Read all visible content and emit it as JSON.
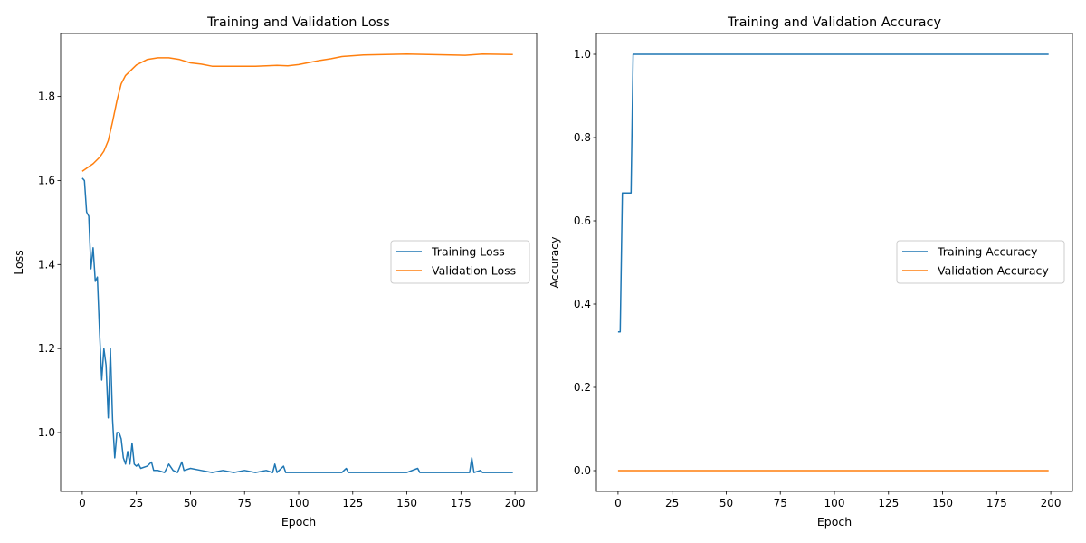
{
  "chart_data": [
    {
      "type": "line",
      "title": "Training and Validation Loss",
      "xlabel": "Epoch",
      "ylabel": "Loss",
      "xlim": [
        -10,
        210
      ],
      "ylim": [
        0.86,
        1.95
      ],
      "xticks": [
        0,
        25,
        50,
        75,
        100,
        125,
        150,
        175,
        200
      ],
      "yticks": [
        1.0,
        1.2,
        1.4,
        1.6,
        1.8
      ],
      "ytick_labels": [
        "1.0",
        "1.2",
        "1.4",
        "1.6",
        "1.8"
      ],
      "grid": false,
      "legend": "center-right",
      "series": [
        {
          "name": "Training Loss",
          "color": "#1f77b4",
          "x": [
            0,
            1,
            2,
            3,
            4,
            5,
            6,
            7,
            8,
            9,
            10,
            11,
            12,
            13,
            14,
            15,
            16,
            17,
            18,
            19,
            20,
            21,
            22,
            23,
            24,
            25,
            26,
            27,
            30,
            32,
            33,
            35,
            38,
            40,
            42,
            44,
            46,
            47,
            50,
            55,
            60,
            65,
            70,
            75,
            80,
            85,
            88,
            89,
            90,
            93,
            94,
            100,
            110,
            120,
            122,
            123,
            130,
            140,
            150,
            155,
            156,
            160,
            170,
            175,
            179,
            180,
            181,
            184,
            185,
            190,
            195,
            199
          ],
          "y": [
            1.606,
            1.6,
            1.525,
            1.515,
            1.39,
            1.44,
            1.36,
            1.37,
            1.24,
            1.125,
            1.2,
            1.16,
            1.035,
            1.2,
            1.03,
            0.94,
            1.0,
            1.0,
            0.985,
            0.94,
            0.925,
            0.955,
            0.925,
            0.975,
            0.925,
            0.92,
            0.925,
            0.915,
            0.92,
            0.93,
            0.91,
            0.91,
            0.905,
            0.925,
            0.91,
            0.905,
            0.93,
            0.91,
            0.915,
            0.91,
            0.905,
            0.91,
            0.905,
            0.91,
            0.905,
            0.91,
            0.905,
            0.925,
            0.905,
            0.92,
            0.905,
            0.905,
            0.905,
            0.905,
            0.915,
            0.905,
            0.905,
            0.905,
            0.905,
            0.915,
            0.905,
            0.905,
            0.905,
            0.905,
            0.905,
            0.94,
            0.905,
            0.91,
            0.905,
            0.905,
            0.905,
            0.905
          ]
        },
        {
          "name": "Validation Loss",
          "color": "#ff7f0e",
          "x": [
            0,
            5,
            8,
            10,
            12,
            14,
            16,
            18,
            20,
            25,
            30,
            35,
            40,
            45,
            50,
            55,
            60,
            70,
            80,
            90,
            95,
            100,
            105,
            110,
            115,
            120,
            130,
            140,
            150,
            160,
            170,
            177,
            185,
            199
          ],
          "y": [
            1.622,
            1.64,
            1.655,
            1.67,
            1.695,
            1.74,
            1.79,
            1.83,
            1.85,
            1.875,
            1.888,
            1.892,
            1.892,
            1.888,
            1.88,
            1.877,
            1.872,
            1.872,
            1.872,
            1.874,
            1.873,
            1.876,
            1.881,
            1.886,
            1.89,
            1.895,
            1.899,
            1.9,
            1.901,
            1.9,
            1.899,
            1.898,
            1.901,
            1.9
          ]
        }
      ]
    },
    {
      "type": "line",
      "title": "Training and Validation Accuracy",
      "xlabel": "Epoch",
      "ylabel": "Accuracy",
      "xlim": [
        -10,
        210
      ],
      "ylim": [
        -0.05,
        1.05
      ],
      "xticks": [
        0,
        25,
        50,
        75,
        100,
        125,
        150,
        175,
        200
      ],
      "yticks": [
        0.0,
        0.2,
        0.4,
        0.6,
        0.8,
        1.0
      ],
      "ytick_labels": [
        "0.0",
        "0.2",
        "0.4",
        "0.6",
        "0.8",
        "1.0"
      ],
      "grid": false,
      "legend": "center-right",
      "series": [
        {
          "name": "Training Accuracy",
          "color": "#1f77b4",
          "x": [
            0,
            1,
            2,
            6,
            7,
            199
          ],
          "y": [
            0.333,
            0.333,
            0.667,
            0.667,
            1.0,
            1.0
          ]
        },
        {
          "name": "Validation Accuracy",
          "color": "#ff7f0e",
          "x": [
            0,
            199
          ],
          "y": [
            0.0,
            0.0
          ]
        }
      ]
    }
  ]
}
